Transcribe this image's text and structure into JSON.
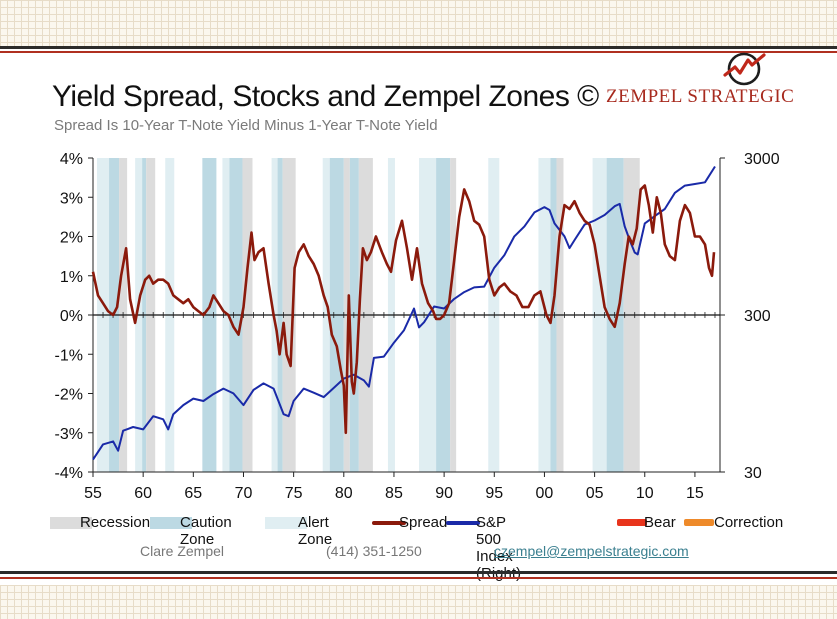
{
  "header": {
    "title": "Yield Spread, Stocks and Zempel Zones ©",
    "subtitle": "Spread Is 10-Year T-Note Yield Minus 1-Year T-Note Yield",
    "brand": "ZEMPEL STRATEGIC"
  },
  "footer": {
    "name": "Clare Zempel",
    "phone": "(414) 351-1250",
    "email": "czempel@zempelstrategic.com"
  },
  "legend": [
    {
      "label": "Recession",
      "kind": "box",
      "color": "#dcdcdc"
    },
    {
      "label": "Caution Zone",
      "kind": "box",
      "color": "#bcd9e3"
    },
    {
      "label": "Alert Zone",
      "kind": "box",
      "color": "#e0eef2"
    },
    {
      "label": "Spread",
      "kind": "line",
      "color": "#8b1a0c"
    },
    {
      "label": "S&P 500 Index (Right)",
      "kind": "line",
      "color": "#1a2aa8"
    },
    {
      "label": "Bear",
      "kind": "line",
      "color": "#e8341c"
    },
    {
      "label": "Correction",
      "kind": "line",
      "color": "#ee8a2a"
    }
  ],
  "chart_data": {
    "type": "line",
    "x_range": [
      1955,
      2017.5
    ],
    "x_ticks": [
      "55",
      "60",
      "65",
      "70",
      "75",
      "80",
      "85",
      "90",
      "95",
      "00",
      "05",
      "10",
      "15"
    ],
    "left_axis": {
      "range": [
        -4,
        4
      ],
      "ticks": [
        "4%",
        "3%",
        "2%",
        "1%",
        "0%",
        "-1%",
        "-2%",
        "-3%",
        "-4%"
      ]
    },
    "right_axis": {
      "scale": "log",
      "range": [
        30,
        3000
      ],
      "ticks": [
        "3000",
        "300",
        "30"
      ]
    },
    "zones": [
      {
        "type": "alert",
        "start": 1955.4,
        "end": 1956.6
      },
      {
        "type": "caution",
        "start": 1956.6,
        "end": 1957.6
      },
      {
        "type": "recession",
        "start": 1957.6,
        "end": 1958.4
      },
      {
        "type": "alert",
        "start": 1959.2,
        "end": 1959.9
      },
      {
        "type": "caution",
        "start": 1959.9,
        "end": 1960.3
      },
      {
        "type": "recession",
        "start": 1960.3,
        "end": 1961.2
      },
      {
        "type": "alert",
        "start": 1962.2,
        "end": 1963.1
      },
      {
        "type": "caution",
        "start": 1965.9,
        "end": 1967.3
      },
      {
        "type": "alert",
        "start": 1967.9,
        "end": 1968.6
      },
      {
        "type": "caution",
        "start": 1968.6,
        "end": 1969.9
      },
      {
        "type": "recession",
        "start": 1969.9,
        "end": 1970.9
      },
      {
        "type": "alert",
        "start": 1972.8,
        "end": 1973.4
      },
      {
        "type": "caution",
        "start": 1973.4,
        "end": 1973.9
      },
      {
        "type": "recession",
        "start": 1973.9,
        "end": 1975.2
      },
      {
        "type": "alert",
        "start": 1977.9,
        "end": 1978.6
      },
      {
        "type": "caution",
        "start": 1978.6,
        "end": 1980.0
      },
      {
        "type": "recession",
        "start": 1980.0,
        "end": 1980.6
      },
      {
        "type": "caution",
        "start": 1980.6,
        "end": 1981.5
      },
      {
        "type": "recession",
        "start": 1981.5,
        "end": 1982.9
      },
      {
        "type": "alert",
        "start": 1984.4,
        "end": 1985.1
      },
      {
        "type": "alert",
        "start": 1987.5,
        "end": 1989.2
      },
      {
        "type": "caution",
        "start": 1989.2,
        "end": 1990.6
      },
      {
        "type": "recession",
        "start": 1990.6,
        "end": 1991.2
      },
      {
        "type": "alert",
        "start": 1994.4,
        "end": 1995.5
      },
      {
        "type": "alert",
        "start": 1999.4,
        "end": 2000.6
      },
      {
        "type": "caution",
        "start": 2000.6,
        "end": 2001.2
      },
      {
        "type": "recession",
        "start": 2001.2,
        "end": 2001.9
      },
      {
        "type": "alert",
        "start": 2004.8,
        "end": 2006.2
      },
      {
        "type": "caution",
        "start": 2006.2,
        "end": 2007.9
      },
      {
        "type": "recession",
        "start": 2007.9,
        "end": 2009.5
      }
    ],
    "series": [
      {
        "name": "Spread",
        "axis": "left",
        "x": [
          1955.0,
          1955.5,
          1956.0,
          1956.5,
          1957.0,
          1957.4,
          1957.8,
          1958.3,
          1958.7,
          1959.2,
          1959.7,
          1960.2,
          1960.6,
          1961.0,
          1961.5,
          1962.0,
          1962.5,
          1963.0,
          1963.5,
          1964.0,
          1964.5,
          1965.0,
          1965.5,
          1966.0,
          1966.6,
          1967.0,
          1967.5,
          1968.0,
          1968.5,
          1969.0,
          1969.5,
          1970.0,
          1970.4,
          1970.8,
          1971.1,
          1971.5,
          1972.0,
          1972.5,
          1973.0,
          1973.3,
          1973.6,
          1974.0,
          1974.3,
          1974.7,
          1975.1,
          1975.5,
          1976.0,
          1976.5,
          1977.0,
          1977.5,
          1978.0,
          1978.4,
          1978.8,
          1979.3,
          1979.7,
          1980.0,
          1980.2,
          1980.5,
          1980.8,
          1981.0,
          1981.3,
          1981.6,
          1981.9,
          1982.3,
          1982.7,
          1983.2,
          1983.8,
          1984.3,
          1984.7,
          1985.2,
          1985.8,
          1986.3,
          1986.8,
          1987.3,
          1987.8,
          1988.4,
          1988.9,
          1989.2,
          1989.6,
          1990.0,
          1990.5,
          1991.0,
          1991.5,
          1992.0,
          1992.5,
          1993.0,
          1993.5,
          1994.0,
          1994.5,
          1995.0,
          1995.5,
          1996.0,
          1996.6,
          1997.2,
          1997.8,
          1998.4,
          1999.0,
          1999.6,
          2000.2,
          2000.6,
          2001.0,
          2001.5,
          2002.0,
          2002.5,
          2003.0,
          2003.5,
          2004.0,
          2004.5,
          2005.0,
          2005.5,
          2006.0,
          2006.5,
          2007.0,
          2007.5,
          2008.0,
          2008.4,
          2008.8,
          2009.2,
          2009.6,
          2010.0,
          2010.4,
          2010.8,
          2011.2,
          2011.6,
          2012.0,
          2012.5,
          2013.0,
          2013.5,
          2014.0,
          2014.5,
          2015.0,
          2015.5,
          2016.0,
          2016.4,
          2016.7,
          2016.9
        ],
        "values": [
          1.1,
          0.5,
          0.3,
          0.1,
          0.0,
          0.2,
          1.0,
          1.7,
          0.4,
          -0.2,
          0.5,
          0.9,
          1.0,
          0.8,
          0.9,
          0.9,
          0.8,
          0.5,
          0.4,
          0.3,
          0.4,
          0.2,
          0.1,
          0.0,
          0.2,
          0.5,
          0.3,
          0.1,
          0.0,
          -0.3,
          -0.5,
          0.2,
          1.2,
          2.1,
          1.4,
          1.6,
          1.7,
          0.8,
          0.0,
          -0.4,
          -1.0,
          -0.2,
          -1.0,
          -1.3,
          1.2,
          1.6,
          1.8,
          1.5,
          1.3,
          1.0,
          0.5,
          0.2,
          -0.5,
          -0.8,
          -1.4,
          -1.8,
          -3.0,
          0.5,
          -1.7,
          -2.0,
          -1.2,
          0.4,
          1.7,
          1.4,
          1.6,
          2.0,
          1.6,
          1.3,
          1.1,
          1.9,
          2.4,
          1.7,
          0.9,
          1.7,
          0.8,
          0.3,
          0.1,
          -0.1,
          -0.1,
          0.0,
          0.3,
          1.4,
          2.5,
          3.2,
          2.9,
          2.4,
          2.3,
          2.0,
          0.9,
          0.5,
          0.7,
          0.8,
          0.6,
          0.5,
          0.2,
          0.2,
          0.5,
          0.6,
          0.0,
          -0.2,
          0.5,
          2.0,
          2.8,
          2.7,
          2.9,
          2.6,
          2.4,
          2.3,
          1.8,
          1.0,
          0.2,
          -0.1,
          -0.3,
          0.3,
          1.3,
          2.0,
          1.8,
          2.2,
          3.2,
          3.3,
          2.8,
          2.1,
          3.0,
          2.6,
          1.8,
          1.5,
          1.4,
          2.4,
          2.8,
          2.6,
          2.0,
          2.0,
          1.8,
          1.2,
          1.0,
          1.6
        ]
      },
      {
        "name": "S&P 500 Index (Right)",
        "axis": "right",
        "x": [
          1955.0,
          1956.0,
          1957.0,
          1957.5,
          1958.0,
          1959.0,
          1960.0,
          1961.0,
          1962.0,
          1962.5,
          1963.0,
          1964.0,
          1965.0,
          1966.0,
          1967.0,
          1968.0,
          1969.0,
          1970.0,
          1971.0,
          1972.0,
          1973.0,
          1974.0,
          1974.5,
          1975.0,
          1976.0,
          1977.0,
          1978.0,
          1979.0,
          1980.0,
          1981.0,
          1982.0,
          1982.5,
          1983.0,
          1984.0,
          1985.0,
          1986.0,
          1987.0,
          1987.5,
          1988.0,
          1989.0,
          1990.0,
          1991.0,
          1992.0,
          1993.0,
          1994.0,
          1995.0,
          1996.0,
          1997.0,
          1998.0,
          1999.0,
          2000.0,
          2000.5,
          2001.0,
          2002.0,
          2002.5,
          2003.0,
          2004.0,
          2005.0,
          2006.0,
          2007.0,
          2007.5,
          2008.0,
          2008.5,
          2009.0,
          2009.3,
          2010.0,
          2011.0,
          2012.0,
          2013.0,
          2014.0,
          2015.0,
          2016.0,
          2017.0
        ],
        "values": [
          36,
          45,
          47,
          41,
          55,
          58,
          56,
          68,
          65,
          56,
          70,
          80,
          88,
          85,
          94,
          102,
          95,
          80,
          100,
          110,
          102,
          70,
          68,
          85,
          102,
          96,
          90,
          103,
          118,
          125,
          115,
          105,
          160,
          163,
          200,
          240,
          330,
          250,
          270,
          340,
          330,
          380,
          420,
          450,
          455,
          600,
          720,
          950,
          1100,
          1350,
          1460,
          1400,
          1150,
          950,
          800,
          900,
          1130,
          1200,
          1300,
          1480,
          1530,
          1100,
          900,
          750,
          730,
          1150,
          1280,
          1420,
          1800,
          2000,
          2050,
          2100,
          2650
        ]
      }
    ]
  }
}
